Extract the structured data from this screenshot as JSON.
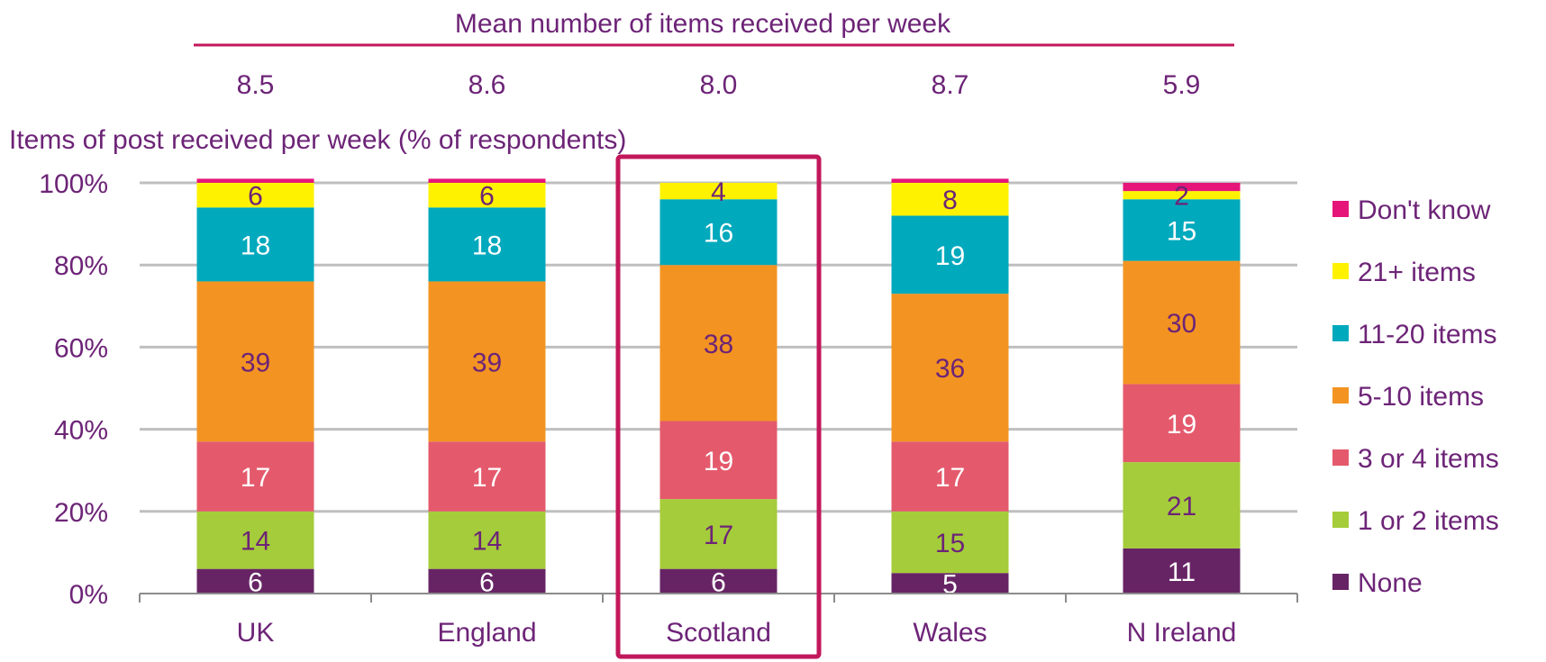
{
  "chart_data": {
    "type": "bar",
    "stacked": true,
    "title": "Mean number of items received per week",
    "ylabel": "Items of post received per week (% of respondents)",
    "categories": [
      "UK",
      "England",
      "Scotland",
      "Wales",
      "N Ireland"
    ],
    "means": [
      "8.5",
      "8.6",
      "8.0",
      "8.7",
      "5.9"
    ],
    "ylim": [
      0,
      100
    ],
    "yticks": [
      "0%",
      "20%",
      "40%",
      "60%",
      "80%",
      "100%"
    ],
    "grid": true,
    "legend_position": "right",
    "highlighted_category": "Scotland",
    "series": [
      {
        "name": "None",
        "color": "#672465",
        "values": [
          6,
          6,
          6,
          5,
          11
        ],
        "labels": [
          "6",
          "6",
          "6",
          "5",
          "11"
        ],
        "label_color": "#ffffff"
      },
      {
        "name": "1 or 2 items",
        "color": "#a5cc3a",
        "values": [
          14,
          14,
          17,
          15,
          21
        ],
        "labels": [
          "14",
          "14",
          "17",
          "15",
          "21"
        ],
        "label_color": "#6d2477"
      },
      {
        "name": "3 or 4 items",
        "color": "#e45a6c",
        "values": [
          17,
          17,
          19,
          17,
          19
        ],
        "labels": [
          "17",
          "17",
          "19",
          "17",
          "19"
        ],
        "label_color": "#ffffff"
      },
      {
        "name": "5-10 items",
        "color": "#f39422",
        "values": [
          39,
          39,
          38,
          36,
          30
        ],
        "labels": [
          "39",
          "39",
          "38",
          "36",
          "30"
        ],
        "label_color": "#6d2477"
      },
      {
        "name": "11-20 items",
        "color": "#01a9bd",
        "values": [
          18,
          18,
          16,
          19,
          15
        ],
        "labels": [
          "18",
          "18",
          "16",
          "19",
          "15"
        ],
        "label_color": "#ffffff"
      },
      {
        "name": "21+ items",
        "color": "#fff200",
        "values": [
          6,
          6,
          4,
          8,
          2
        ],
        "labels": [
          "6",
          "6",
          "4",
          "8",
          "2"
        ],
        "label_color": "#6d2477"
      },
      {
        "name": "Don't know",
        "color": "#e5157a",
        "values": [
          1,
          1,
          0,
          1,
          2
        ],
        "labels": [
          "",
          "",
          "",
          "",
          ""
        ],
        "label_color": "#6d2477"
      }
    ],
    "colors": {
      "text": "#6d2477",
      "title_rule": "#c2185b",
      "highlight_box": "#c2185b",
      "grid": "#bfbfbf",
      "axis": "#8c8c8c"
    }
  }
}
